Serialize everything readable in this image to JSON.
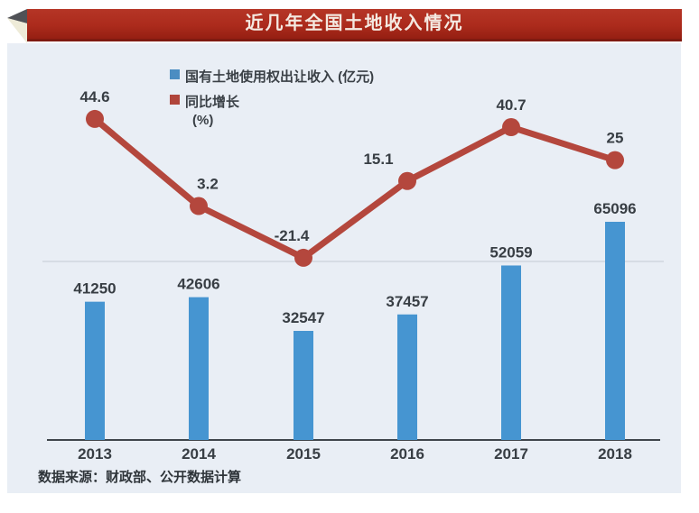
{
  "title": "近几年全国土地收入情况",
  "legend": {
    "bar": {
      "label": "国有土地使用权出让收入 (亿元)",
      "color": "#4b8dc2"
    },
    "line": {
      "label": "同比增长",
      "unit": "(%)",
      "color": "#b0453b"
    }
  },
  "source": "数据来源：财政部、公开数据计算",
  "colors": {
    "banner_red": "#ac2b1c",
    "panel_bg": "#e9eef5",
    "bar_blue": "#4695d1",
    "line_red": "#b4473d",
    "axis": "#3f454b",
    "gridline": "#cfd6de",
    "label_text": "#383e44"
  },
  "chart_data": {
    "type": "combo",
    "title": "近几年全国土地收入情况",
    "categories": [
      "2013",
      "2014",
      "2015",
      "2016",
      "2017",
      "2018"
    ],
    "series": [
      {
        "name": "国有土地使用权出让收入 (亿元)",
        "type": "bar",
        "values": [
          41250,
          42606,
          32547,
          37457,
          52059,
          65096
        ],
        "color": "#4695d1"
      },
      {
        "name": "同比增长 (%)",
        "type": "line",
        "values": [
          44.6,
          3.2,
          -21.4,
          15.1,
          40.7,
          25
        ],
        "color": "#b4473d"
      }
    ],
    "xlabel": "",
    "ylabel_bar": "亿元",
    "ylabel_line": "%",
    "value_labels": true,
    "legend_position": "top-center",
    "grid": "one light horizontal gridline in upper chart area",
    "source_note": "数据来源：财政部、公开数据计算",
    "layout": {
      "point_label_dx": [
        0,
        10,
        -13,
        -32,
        0,
        0
      ]
    }
  }
}
